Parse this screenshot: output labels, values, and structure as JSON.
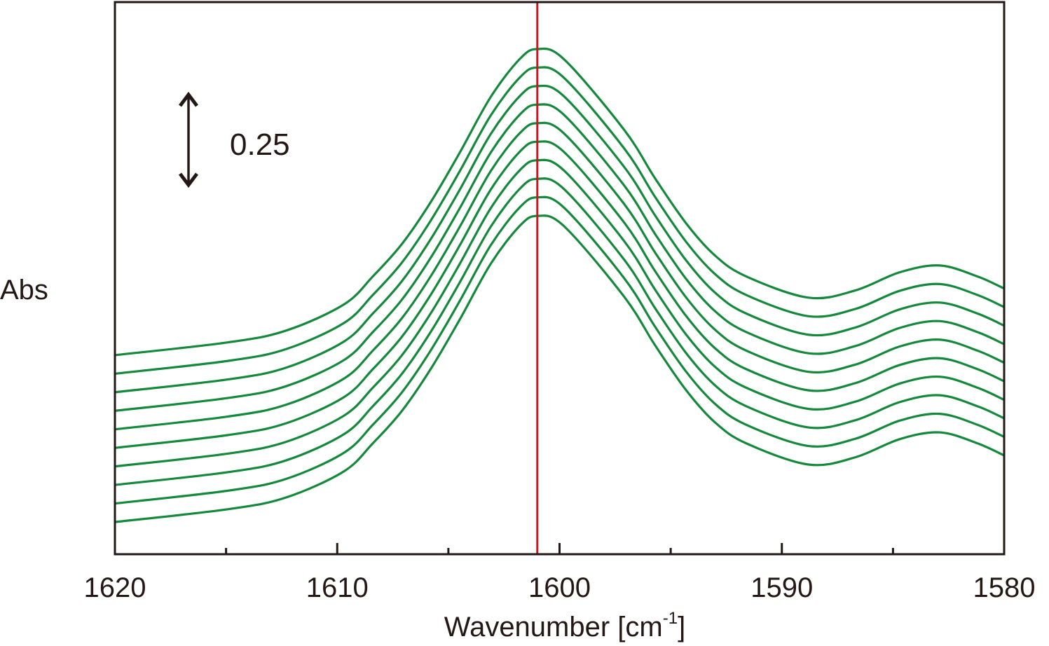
{
  "chart_data": {
    "type": "line",
    "title": "",
    "xlabel": {
      "main": "Wavenumber [cm",
      "sup": "-1",
      "end": "]"
    },
    "ylabel": "Abs",
    "xlim": [
      1620,
      1580
    ],
    "x_reversed": true,
    "ylim": [
      0,
      1.459
    ],
    "y_ticks_shown": false,
    "grid": false,
    "x_ticks": [
      1620,
      1610,
      1600,
      1590,
      1580
    ],
    "x_tick_labels": [
      "1620",
      "1610",
      "1600",
      "1590",
      "1580"
    ],
    "x_minor_ticks": [
      1615,
      1605,
      1595,
      1585
    ],
    "reference_line": {
      "x": 1601.0,
      "color": "#d7111b"
    },
    "scale_bar": {
      "label": "0.25",
      "value": 0.25
    },
    "series_color": "#14893c",
    "x": [
      1620,
      1614.9,
      1612.3,
      1609.7,
      1608.4,
      1607.1,
      1605.8,
      1604.5,
      1603.1,
      1601.8,
      1601.0,
      1599.8,
      1597.1,
      1595.7,
      1594.3,
      1593.0,
      1591.6,
      1588.8,
      1586.7,
      1584.7,
      1582.9,
      1581.2,
      1580
    ],
    "series": [
      {
        "values": [
          0.085,
          0.119,
          0.15,
          0.219,
          0.293,
          0.378,
          0.489,
          0.619,
          0.767,
          0.867,
          0.894,
          0.867,
          0.681,
          0.552,
          0.433,
          0.348,
          0.293,
          0.237,
          0.256,
          0.304,
          0.322,
          0.293,
          0.261
        ]
      },
      {
        "values": [
          0.134,
          0.168,
          0.199,
          0.268,
          0.342,
          0.427,
          0.538,
          0.668,
          0.816,
          0.916,
          0.943,
          0.916,
          0.73,
          0.601,
          0.482,
          0.397,
          0.342,
          0.286,
          0.305,
          0.353,
          0.371,
          0.342,
          0.31
        ]
      },
      {
        "values": [
          0.183,
          0.217,
          0.248,
          0.317,
          0.391,
          0.476,
          0.587,
          0.717,
          0.865,
          0.965,
          0.992,
          0.965,
          0.779,
          0.65,
          0.531,
          0.446,
          0.391,
          0.335,
          0.354,
          0.402,
          0.42,
          0.391,
          0.359
        ]
      },
      {
        "values": [
          0.232,
          0.266,
          0.297,
          0.366,
          0.44,
          0.525,
          0.636,
          0.766,
          0.914,
          1.014,
          1.041,
          1.014,
          0.828,
          0.699,
          0.58,
          0.495,
          0.44,
          0.384,
          0.403,
          0.451,
          0.469,
          0.44,
          0.408
        ]
      },
      {
        "values": [
          0.281,
          0.315,
          0.346,
          0.415,
          0.489,
          0.574,
          0.685,
          0.815,
          0.963,
          1.063,
          1.09,
          1.063,
          0.877,
          0.748,
          0.629,
          0.544,
          0.489,
          0.433,
          0.452,
          0.5,
          0.518,
          0.489,
          0.457
        ]
      },
      {
        "values": [
          0.33,
          0.364,
          0.395,
          0.464,
          0.538,
          0.623,
          0.734,
          0.864,
          1.012,
          1.112,
          1.139,
          1.112,
          0.926,
          0.797,
          0.678,
          0.593,
          0.538,
          0.482,
          0.501,
          0.549,
          0.567,
          0.538,
          0.506
        ]
      },
      {
        "values": [
          0.379,
          0.413,
          0.444,
          0.513,
          0.587,
          0.672,
          0.783,
          0.913,
          1.061,
          1.161,
          1.188,
          1.161,
          0.975,
          0.846,
          0.727,
          0.642,
          0.587,
          0.531,
          0.55,
          0.598,
          0.616,
          0.587,
          0.555
        ]
      },
      {
        "values": [
          0.428,
          0.462,
          0.493,
          0.562,
          0.636,
          0.721,
          0.832,
          0.962,
          1.11,
          1.21,
          1.237,
          1.21,
          1.024,
          0.895,
          0.776,
          0.691,
          0.636,
          0.58,
          0.599,
          0.647,
          0.665,
          0.636,
          0.604
        ]
      },
      {
        "values": [
          0.477,
          0.511,
          0.542,
          0.611,
          0.685,
          0.77,
          0.881,
          1.011,
          1.159,
          1.259,
          1.286,
          1.259,
          1.073,
          0.944,
          0.825,
          0.74,
          0.685,
          0.629,
          0.648,
          0.696,
          0.714,
          0.685,
          0.653
        ]
      },
      {
        "values": [
          0.526,
          0.56,
          0.591,
          0.66,
          0.734,
          0.819,
          0.93,
          1.06,
          1.208,
          1.308,
          1.335,
          1.308,
          1.122,
          0.993,
          0.874,
          0.789,
          0.734,
          0.678,
          0.697,
          0.745,
          0.763,
          0.734,
          0.702
        ]
      }
    ]
  }
}
